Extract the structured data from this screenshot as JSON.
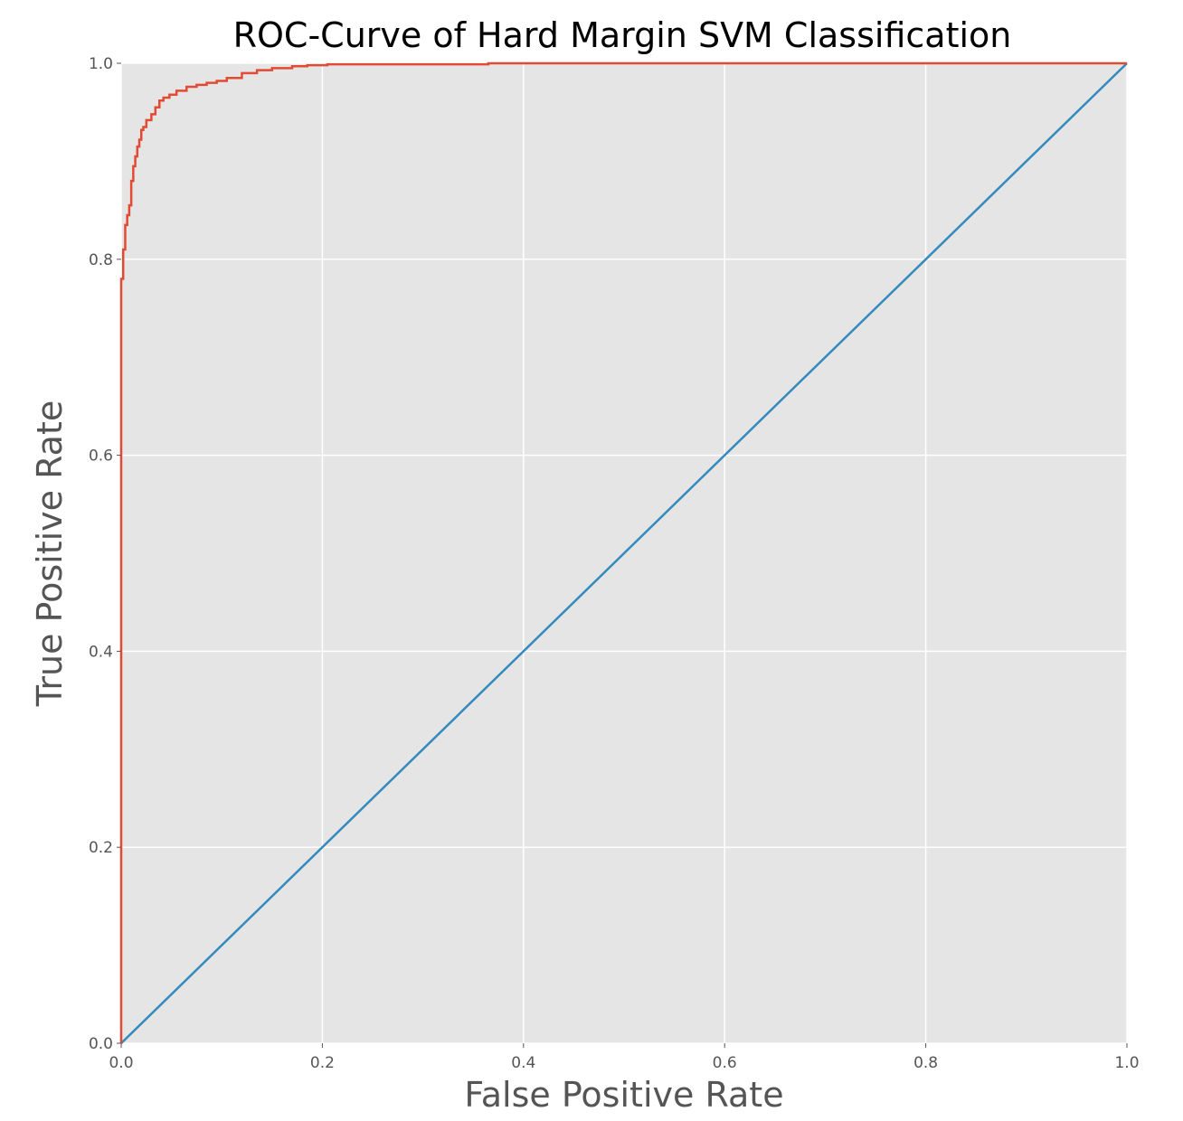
{
  "chart_data": {
    "type": "line",
    "title": "ROC-Curve of Hard Margin SVM Classification",
    "xlabel": "False Positive Rate",
    "ylabel": "True Positive Rate",
    "xlim": [
      0.0,
      1.0
    ],
    "ylim": [
      0.0,
      1.0
    ],
    "xticks": [
      "0.0",
      "0.2",
      "0.4",
      "0.6",
      "0.8",
      "1.0"
    ],
    "yticks": [
      "0.0",
      "0.2",
      "0.4",
      "0.6",
      "0.8",
      "1.0"
    ],
    "grid": true,
    "legend": "none",
    "background_color": "#e5e5e5",
    "series": [
      {
        "color": "#e24a33",
        "style": "step",
        "x": [
          0.0,
          0.0,
          0.002,
          0.002,
          0.004,
          0.004,
          0.006,
          0.006,
          0.008,
          0.008,
          0.01,
          0.01,
          0.012,
          0.012,
          0.014,
          0.014,
          0.016,
          0.016,
          0.018,
          0.018,
          0.02,
          0.02,
          0.022,
          0.022,
          0.025,
          0.025,
          0.03,
          0.03,
          0.034,
          0.034,
          0.038,
          0.038,
          0.042,
          0.042,
          0.048,
          0.048,
          0.055,
          0.055,
          0.065,
          0.065,
          0.075,
          0.075,
          0.085,
          0.085,
          0.095,
          0.095,
          0.105,
          0.105,
          0.12,
          0.12,
          0.135,
          0.135,
          0.15,
          0.15,
          0.17,
          0.17,
          0.185,
          0.185,
          0.205,
          0.205,
          0.365,
          0.365,
          1.0
        ],
        "y": [
          0.0,
          0.78,
          0.78,
          0.81,
          0.81,
          0.835,
          0.835,
          0.845,
          0.845,
          0.855,
          0.855,
          0.88,
          0.88,
          0.895,
          0.895,
          0.905,
          0.905,
          0.915,
          0.915,
          0.922,
          0.922,
          0.932,
          0.932,
          0.935,
          0.935,
          0.942,
          0.942,
          0.948,
          0.948,
          0.955,
          0.955,
          0.962,
          0.962,
          0.965,
          0.965,
          0.968,
          0.968,
          0.972,
          0.972,
          0.976,
          0.976,
          0.978,
          0.978,
          0.98,
          0.98,
          0.982,
          0.982,
          0.985,
          0.985,
          0.99,
          0.99,
          0.993,
          0.993,
          0.995,
          0.995,
          0.997,
          0.997,
          0.998,
          0.998,
          0.999,
          0.999,
          1.0,
          1.0
        ]
      },
      {
        "color": "#348abd",
        "style": "line",
        "x": [
          0.0,
          1.0
        ],
        "y": [
          0.0,
          1.0
        ]
      }
    ]
  }
}
